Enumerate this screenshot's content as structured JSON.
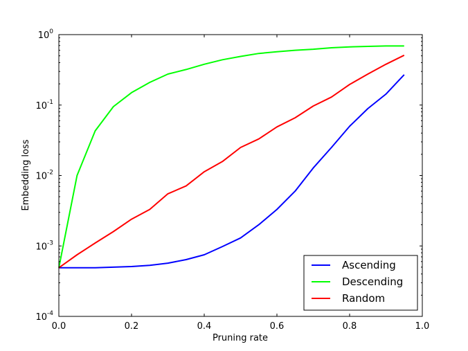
{
  "chart_data": {
    "type": "line",
    "title": "",
    "xlabel": "Pruning rate",
    "ylabel": "Embedding loss",
    "xlim": [
      0.0,
      1.0
    ],
    "ylim": [
      0.0001,
      1.0
    ],
    "yscale": "log",
    "grid": false,
    "legend_position": "lower right",
    "x_ticks": [
      "0.0",
      "0.2",
      "0.4",
      "0.6",
      "0.8",
      "1.0"
    ],
    "y_ticks": [
      {
        "base": "10",
        "exp": "0",
        "value": 1.0
      },
      {
        "base": "10",
        "exp": "-1",
        "value": 0.1
      },
      {
        "base": "10",
        "exp": "-2",
        "value": 0.01
      },
      {
        "base": "10",
        "exp": "-3",
        "value": 0.001
      },
      {
        "base": "10",
        "exp": "-4",
        "value": 0.0001
      }
    ],
    "x": [
      0.0,
      0.05,
      0.1,
      0.15,
      0.2,
      0.25,
      0.3,
      0.35,
      0.4,
      0.45,
      0.5,
      0.55,
      0.6,
      0.65,
      0.7,
      0.75,
      0.8,
      0.85,
      0.9,
      0.95
    ],
    "series": [
      {
        "name": "Ascending",
        "color": "#0000ff",
        "values": [
          0.00049,
          0.00049,
          0.00049,
          0.0005,
          0.00051,
          0.00053,
          0.00057,
          0.00064,
          0.00075,
          0.00098,
          0.0013,
          0.002,
          0.0033,
          0.006,
          0.0128,
          0.025,
          0.05,
          0.089,
          0.143,
          0.27
        ]
      },
      {
        "name": "Descending",
        "color": "#00ff00",
        "values": [
          0.00049,
          0.01,
          0.043,
          0.095,
          0.15,
          0.21,
          0.275,
          0.32,
          0.38,
          0.44,
          0.49,
          0.54,
          0.57,
          0.6,
          0.62,
          0.65,
          0.67,
          0.68,
          0.69,
          0.69
        ]
      },
      {
        "name": "Random",
        "color": "#ff0000",
        "values": [
          0.00049,
          0.00075,
          0.0011,
          0.0016,
          0.0024,
          0.0033,
          0.0055,
          0.0071,
          0.0113,
          0.0158,
          0.025,
          0.033,
          0.049,
          0.066,
          0.097,
          0.13,
          0.196,
          0.275,
          0.38,
          0.51
        ]
      }
    ]
  },
  "legend": {
    "items": [
      {
        "label": "Ascending",
        "color": "#0000ff"
      },
      {
        "label": "Descending",
        "color": "#00ff00"
      },
      {
        "label": "Random",
        "color": "#ff0000"
      }
    ]
  }
}
